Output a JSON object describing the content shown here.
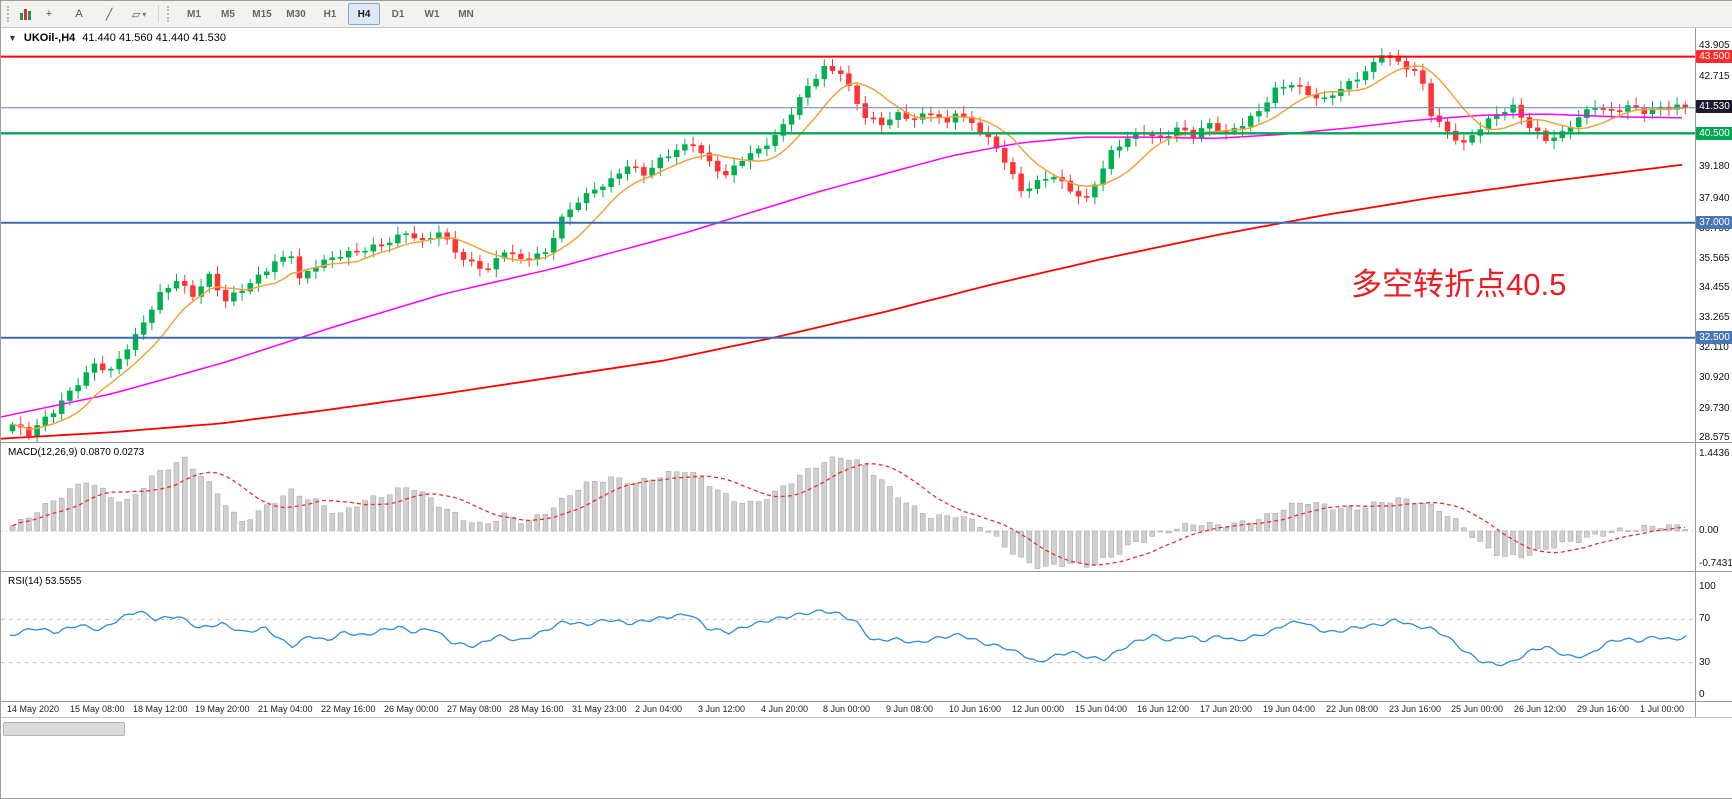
{
  "toolbar": {
    "tools": [
      {
        "name": "crosshair",
        "glyph": "+"
      },
      {
        "name": "text-tool",
        "glyph": "A"
      },
      {
        "name": "trendline-tool",
        "glyph": "╱"
      },
      {
        "name": "shapes-tool",
        "glyph": "▱",
        "caret": "▾"
      }
    ],
    "timeframes": [
      {
        "label": "M1"
      },
      {
        "label": "M5"
      },
      {
        "label": "M15"
      },
      {
        "label": "M30"
      },
      {
        "label": "H1"
      },
      {
        "label": "H4",
        "active": true
      },
      {
        "label": "D1"
      },
      {
        "label": "W1"
      },
      {
        "label": "MN"
      }
    ]
  },
  "chart": {
    "title": {
      "symbol_tf": "UKOil-,H4",
      "ohlc": "41.440 41.560 41.440 41.530"
    },
    "annotation": {
      "text": "多空转折点40.5",
      "color": "#ed1c24"
    },
    "colors": {
      "up": "#00b050",
      "down": "#ff3333",
      "ma_fast": "#f2a33c",
      "ma_mid": "#ff00ff",
      "ma_slow": "#ff0000",
      "price_line": "#7291bb"
    },
    "price_axis": {
      "min": 28.42,
      "max": 44.62,
      "ticks": [
        "43.905",
        "42.715",
        "41.525",
        "40.340",
        "39.180",
        "37.940",
        "36.750",
        "35.565",
        "34.455",
        "33.265",
        "32.110",
        "30.920",
        "29.730",
        "28.575"
      ],
      "badges": [
        {
          "value": "43.500",
          "color": "#ff2b2b"
        },
        {
          "value": "41.530",
          "color": "#1c1c2e"
        },
        {
          "value": "40.500",
          "color": "#00a651"
        },
        {
          "value": "37.000",
          "color": "#4a77b4"
        },
        {
          "value": "32.500",
          "color": "#4a77b4"
        }
      ]
    },
    "hlines": [
      {
        "price": 43.5,
        "color": "#ff0000",
        "width": 2
      },
      {
        "price": 41.5,
        "color": "#7291bb",
        "width": 1.2
      },
      {
        "price": 40.5,
        "color": "#00a651",
        "width": 2.4
      },
      {
        "price": 37.0,
        "color": "#3c6cb4",
        "width": 2
      },
      {
        "price": 32.5,
        "color": "#3c6cb4",
        "width": 2
      }
    ],
    "candle_count": 205,
    "close_waypoints": [
      [
        0,
        29.1
      ],
      [
        2,
        28.7
      ],
      [
        5,
        29.6
      ],
      [
        7,
        30.4
      ],
      [
        10,
        31.5
      ],
      [
        12,
        31.2
      ],
      [
        15,
        32.5
      ],
      [
        18,
        34.2
      ],
      [
        20,
        34.8
      ],
      [
        22,
        34.2
      ],
      [
        24,
        34.9
      ],
      [
        26,
        33.9
      ],
      [
        29,
        34.6
      ],
      [
        32,
        35.5
      ],
      [
        34,
        35.8
      ],
      [
        35,
        34.8
      ],
      [
        37,
        35.3
      ],
      [
        40,
        35.7
      ],
      [
        43,
        36.0
      ],
      [
        46,
        36.3
      ],
      [
        48,
        36.6
      ],
      [
        50,
        36.2
      ],
      [
        52,
        36.6
      ],
      [
        55,
        35.6
      ],
      [
        58,
        35.2
      ],
      [
        60,
        35.9
      ],
      [
        62,
        35.5
      ],
      [
        65,
        35.8
      ],
      [
        67,
        37.2
      ],
      [
        69,
        37.9
      ],
      [
        71,
        38.3
      ],
      [
        73,
        38.6
      ],
      [
        75,
        39.2
      ],
      [
        77,
        38.9
      ],
      [
        79,
        39.5
      ],
      [
        81,
        39.9
      ],
      [
        83,
        40.1
      ],
      [
        85,
        39.3
      ],
      [
        87,
        38.8
      ],
      [
        89,
        39.5
      ],
      [
        91,
        39.9
      ],
      [
        93,
        40.4
      ],
      [
        95,
        41.3
      ],
      [
        97,
        42.3
      ],
      [
        99,
        43.0
      ],
      [
        101,
        42.9
      ],
      [
        102,
        42.3
      ],
      [
        104,
        41.2
      ],
      [
        106,
        40.9
      ],
      [
        108,
        41.2
      ],
      [
        110,
        41.0
      ],
      [
        112,
        41.3
      ],
      [
        114,
        40.9
      ],
      [
        115,
        41.4
      ],
      [
        117,
        40.9
      ],
      [
        119,
        40.3
      ],
      [
        121,
        39.4
      ],
      [
        123,
        38.2
      ],
      [
        125,
        38.6
      ],
      [
        127,
        38.9
      ],
      [
        129,
        38.3
      ],
      [
        131,
        37.9
      ],
      [
        132,
        38.5
      ],
      [
        134,
        39.7
      ],
      [
        136,
        40.3
      ],
      [
        138,
        40.6
      ],
      [
        140,
        40.3
      ],
      [
        142,
        40.7
      ],
      [
        144,
        40.4
      ],
      [
        146,
        40.8
      ],
      [
        148,
        40.5
      ],
      [
        150,
        40.9
      ],
      [
        152,
        41.4
      ],
      [
        154,
        42.2
      ],
      [
        156,
        42.4
      ],
      [
        158,
        42.0
      ],
      [
        160,
        41.8
      ],
      [
        162,
        42.3
      ],
      [
        164,
        42.7
      ],
      [
        166,
        43.2
      ],
      [
        167,
        43.6
      ],
      [
        169,
        43.2
      ],
      [
        171,
        42.9
      ],
      [
        172,
        42.4
      ],
      [
        173,
        41.3
      ],
      [
        175,
        40.6
      ],
      [
        177,
        40.1
      ],
      [
        179,
        40.7
      ],
      [
        181,
        41.2
      ],
      [
        183,
        41.5
      ],
      [
        185,
        40.8
      ],
      [
        187,
        40.3
      ],
      [
        189,
        40.5
      ],
      [
        191,
        41.1
      ],
      [
        193,
        41.5
      ],
      [
        195,
        41.3
      ],
      [
        197,
        41.6
      ],
      [
        199,
        41.4
      ],
      [
        201,
        41.5
      ],
      [
        204,
        41.53
      ]
    ],
    "ma_mid_waypoints": [
      [
        0,
        29.4
      ],
      [
        100,
        30.3
      ],
      [
        200,
        31.5
      ],
      [
        300,
        32.9
      ],
      [
        400,
        34.2
      ],
      [
        500,
        35.2
      ],
      [
        560,
        35.9
      ],
      [
        620,
        36.6
      ],
      [
        680,
        37.4
      ],
      [
        740,
        38.2
      ],
      [
        800,
        38.9
      ],
      [
        860,
        39.6
      ],
      [
        920,
        40.1
      ],
      [
        980,
        40.35
      ],
      [
        1040,
        40.35
      ],
      [
        1100,
        40.3
      ],
      [
        1160,
        40.45
      ],
      [
        1220,
        40.7
      ],
      [
        1280,
        41.0
      ],
      [
        1340,
        41.2
      ],
      [
        1400,
        41.25
      ],
      [
        1460,
        41.15
      ],
      [
        1530,
        41.1
      ]
    ],
    "ma_slow_waypoints": [
      [
        0,
        28.55
      ],
      [
        100,
        28.8
      ],
      [
        200,
        29.15
      ],
      [
        300,
        29.7
      ],
      [
        400,
        30.3
      ],
      [
        500,
        30.95
      ],
      [
        600,
        31.6
      ],
      [
        700,
        32.5
      ],
      [
        800,
        33.5
      ],
      [
        900,
        34.6
      ],
      [
        1000,
        35.6
      ],
      [
        1100,
        36.5
      ],
      [
        1200,
        37.3
      ],
      [
        1300,
        38.0
      ],
      [
        1400,
        38.6
      ],
      [
        1530,
        39.3
      ]
    ]
  },
  "macd": {
    "label": "MACD(12,26,9) 0.0870 0.0273",
    "axis_ticks": [
      {
        "label": "1.4436",
        "value": 1.4436
      },
      {
        "label": "0.00",
        "value": 0
      },
      {
        "label": "-0.7431",
        "value": -0.7431
      }
    ],
    "colors": {
      "histogram": "#cfcfcf",
      "histogram_border": "#a3a3a3",
      "signal": "#e23131"
    },
    "envelope": [
      [
        10,
        0.1
      ],
      [
        40,
        0.5
      ],
      [
        75,
        0.95
      ],
      [
        110,
        0.5
      ],
      [
        140,
        1.1
      ],
      [
        165,
        1.35
      ],
      [
        195,
        0.7
      ],
      [
        215,
        0.15
      ],
      [
        235,
        0.4
      ],
      [
        260,
        0.75
      ],
      [
        285,
        0.55
      ],
      [
        305,
        0.3
      ],
      [
        325,
        0.55
      ],
      [
        350,
        0.7
      ],
      [
        370,
        0.85
      ],
      [
        395,
        0.5
      ],
      [
        415,
        0.25
      ],
      [
        435,
        0.1
      ],
      [
        455,
        0.3
      ],
      [
        475,
        0.15
      ],
      [
        500,
        0.45
      ],
      [
        525,
        0.85
      ],
      [
        550,
        1.0
      ],
      [
        575,
        0.9
      ],
      [
        600,
        1.05
      ],
      [
        620,
        1.15
      ],
      [
        640,
        0.9
      ],
      [
        660,
        0.6
      ],
      [
        680,
        0.5
      ],
      [
        700,
        0.7
      ],
      [
        720,
        1.0
      ],
      [
        745,
        1.3
      ],
      [
        765,
        1.4
      ],
      [
        785,
        1.2
      ],
      [
        805,
        0.8
      ],
      [
        825,
        0.45
      ],
      [
        845,
        0.25
      ],
      [
        865,
        0.3
      ],
      [
        885,
        0.15
      ],
      [
        905,
        -0.2
      ],
      [
        925,
        -0.55
      ],
      [
        945,
        -0.7
      ],
      [
        965,
        -0.6
      ],
      [
        985,
        -0.65
      ],
      [
        1005,
        -0.5
      ],
      [
        1025,
        -0.25
      ],
      [
        1045,
        -0.1
      ],
      [
        1065,
        0.05
      ],
      [
        1085,
        0.15
      ],
      [
        1105,
        0.1
      ],
      [
        1125,
        0.15
      ],
      [
        1145,
        0.25
      ],
      [
        1165,
        0.45
      ],
      [
        1185,
        0.55
      ],
      [
        1205,
        0.45
      ],
      [
        1225,
        0.4
      ],
      [
        1245,
        0.5
      ],
      [
        1265,
        0.6
      ],
      [
        1285,
        0.55
      ],
      [
        1305,
        0.4
      ],
      [
        1325,
        0.1
      ],
      [
        1345,
        -0.3
      ],
      [
        1365,
        -0.5
      ],
      [
        1385,
        -0.45
      ],
      [
        1405,
        -0.3
      ],
      [
        1425,
        -0.2
      ],
      [
        1445,
        -0.1
      ],
      [
        1465,
        0.0
      ],
      [
        1485,
        0.05
      ],
      [
        1505,
        0.1
      ],
      [
        1525,
        0.08
      ]
    ]
  },
  "rsi": {
    "label": "RSI(14) 53.5555",
    "color": "#2f8be0",
    "axis_ticks": [
      {
        "label": "100",
        "value": 100
      },
      {
        "label": "70",
        "value": 70
      },
      {
        "label": "30",
        "value": 30
      },
      {
        "label": "0",
        "value": 0
      }
    ],
    "levels": [
      70,
      30
    ],
    "points": [
      [
        8,
        55
      ],
      [
        30,
        62
      ],
      [
        50,
        58
      ],
      [
        70,
        65
      ],
      [
        90,
        60
      ],
      [
        110,
        72
      ],
      [
        125,
        78
      ],
      [
        140,
        70
      ],
      [
        160,
        73
      ],
      [
        180,
        62
      ],
      [
        200,
        66
      ],
      [
        220,
        58
      ],
      [
        240,
        62
      ],
      [
        255,
        50
      ],
      [
        265,
        45
      ],
      [
        280,
        55
      ],
      [
        295,
        50
      ],
      [
        310,
        58
      ],
      [
        330,
        55
      ],
      [
        345,
        60
      ],
      [
        360,
        63
      ],
      [
        375,
        58
      ],
      [
        390,
        62
      ],
      [
        410,
        48
      ],
      [
        430,
        45
      ],
      [
        450,
        55
      ],
      [
        470,
        50
      ],
      [
        490,
        58
      ],
      [
        510,
        68
      ],
      [
        530,
        65
      ],
      [
        550,
        70
      ],
      [
        570,
        66
      ],
      [
        590,
        70
      ],
      [
        610,
        73
      ],
      [
        625,
        75
      ],
      [
        640,
        62
      ],
      [
        660,
        58
      ],
      [
        680,
        65
      ],
      [
        700,
        70
      ],
      [
        720,
        74
      ],
      [
        745,
        78
      ],
      [
        760,
        75
      ],
      [
        775,
        68
      ],
      [
        790,
        50
      ],
      [
        810,
        52
      ],
      [
        830,
        48
      ],
      [
        850,
        53
      ],
      [
        870,
        56
      ],
      [
        890,
        48
      ],
      [
        910,
        44
      ],
      [
        925,
        38
      ],
      [
        940,
        30
      ],
      [
        955,
        36
      ],
      [
        970,
        40
      ],
      [
        985,
        35
      ],
      [
        1000,
        33
      ],
      [
        1015,
        42
      ],
      [
        1030,
        50
      ],
      [
        1045,
        55
      ],
      [
        1060,
        50
      ],
      [
        1075,
        55
      ],
      [
        1090,
        50
      ],
      [
        1105,
        55
      ],
      [
        1120,
        50
      ],
      [
        1135,
        54
      ],
      [
        1150,
        58
      ],
      [
        1165,
        66
      ],
      [
        1180,
        68
      ],
      [
        1195,
        60
      ],
      [
        1210,
        58
      ],
      [
        1225,
        62
      ],
      [
        1240,
        64
      ],
      [
        1255,
        66
      ],
      [
        1265,
        70
      ],
      [
        1280,
        64
      ],
      [
        1295,
        62
      ],
      [
        1310,
        55
      ],
      [
        1325,
        42
      ],
      [
        1340,
        32
      ],
      [
        1355,
        28
      ],
      [
        1370,
        30
      ],
      [
        1385,
        40
      ],
      [
        1400,
        45
      ],
      [
        1415,
        38
      ],
      [
        1425,
        35
      ],
      [
        1440,
        37
      ],
      [
        1455,
        48
      ],
      [
        1470,
        52
      ],
      [
        1485,
        50
      ],
      [
        1500,
        54
      ],
      [
        1515,
        51
      ],
      [
        1528,
        54
      ]
    ]
  },
  "time_axis": {
    "labels": [
      "14 May 2020",
      "15 May 08:00",
      "18 May 12:00",
      "19 May 20:00",
      "21 May 04:00",
      "22 May 16:00",
      "26 May 00:00",
      "27 May 08:00",
      "28 May 16:00",
      "31 May 23:00",
      "2 Jun 04:00",
      "3 Jun 12:00",
      "4 Jun 20:00",
      "8 Jun 00:00",
      "9 Jun 08:00",
      "10 Jun 16:00",
      "12 Jun 00:00",
      "15 Jun 04:00",
      "16 Jun 12:00",
      "17 Jun 20:00",
      "19 Jun 04:00",
      "22 Jun 08:00",
      "23 Jun 16:00",
      "25 Jun 00:00",
      "26 Jun 12:00",
      "29 Jun 16:00",
      "1 Jul 00:00"
    ]
  }
}
